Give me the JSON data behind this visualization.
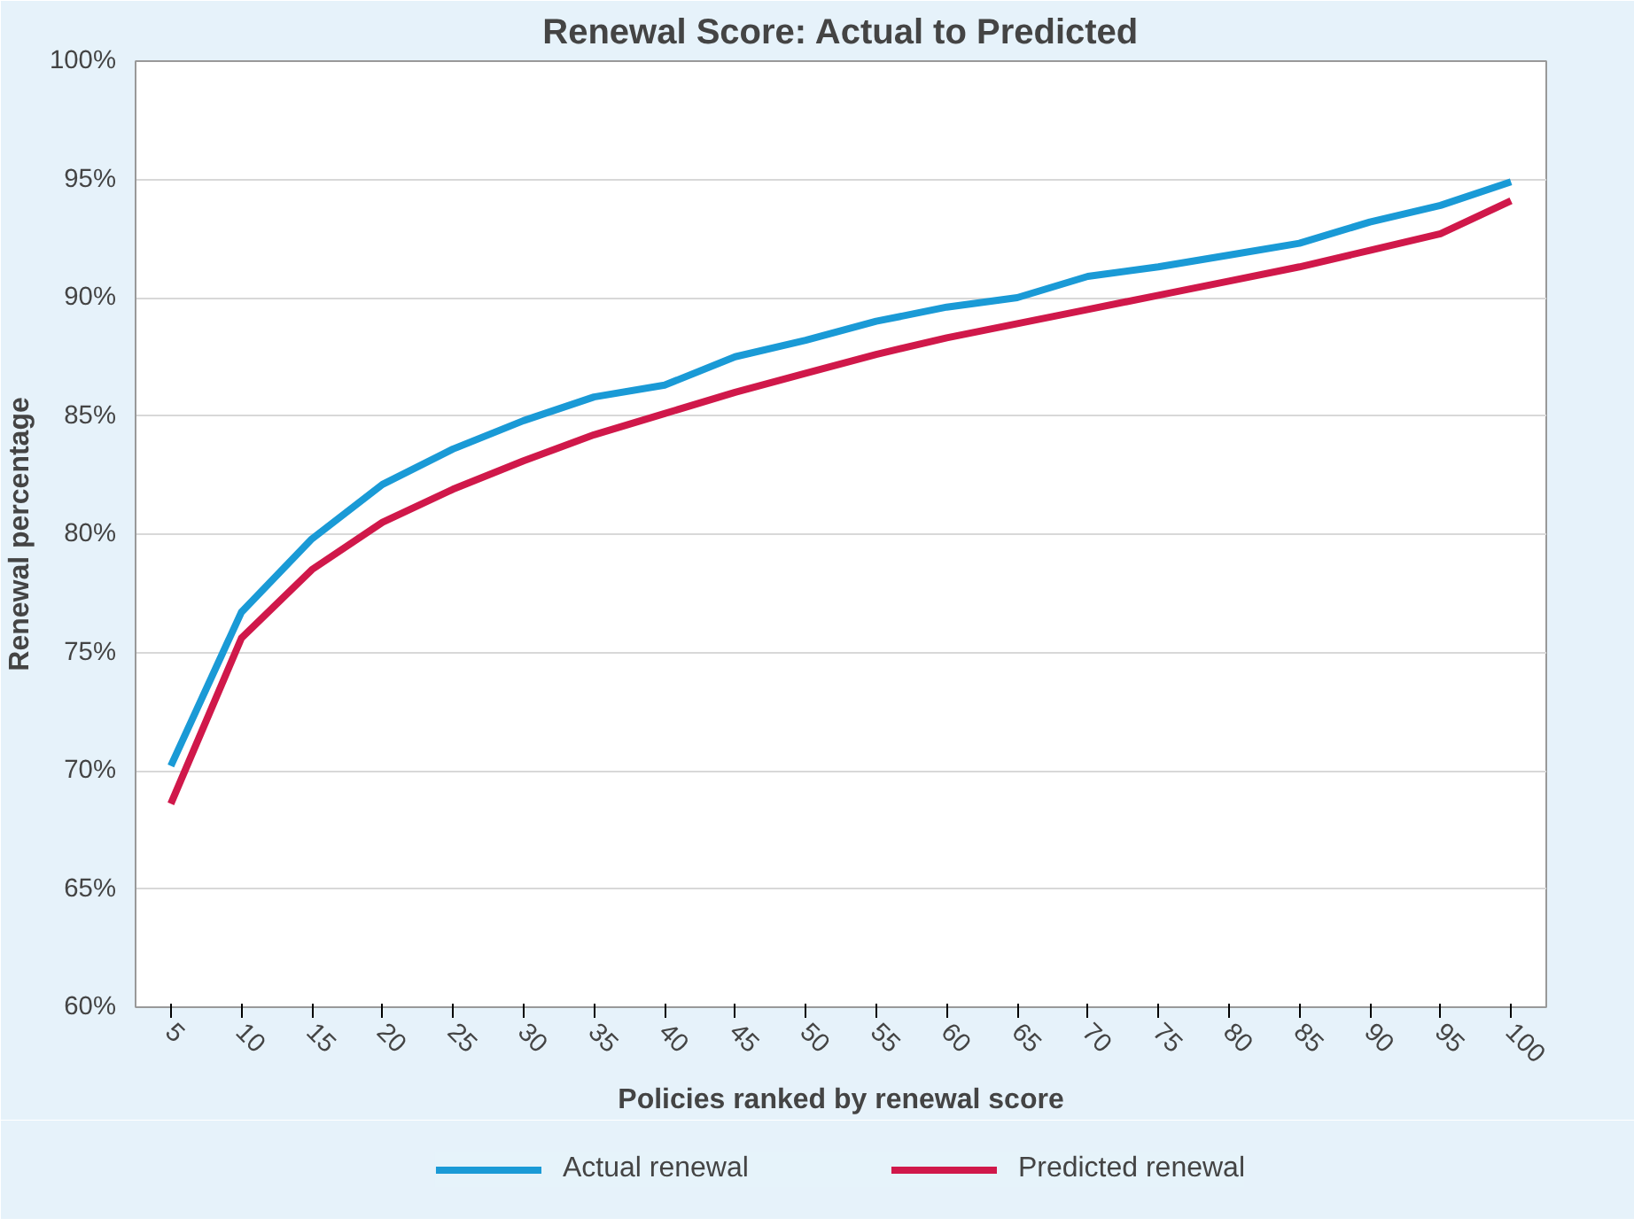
{
  "chart_data": {
    "type": "line",
    "title": "Renewal Score: Actual to Predicted",
    "xlabel": "Policies ranked by renewal score",
    "ylabel": "Renewal percentage",
    "categories": [
      "5",
      "10",
      "15",
      "20",
      "25",
      "30",
      "35",
      "40",
      "45",
      "50",
      "55",
      "60",
      "65",
      "70",
      "75",
      "80",
      "85",
      "90",
      "95",
      "100"
    ],
    "series": [
      {
        "name": "Actual renewal",
        "color": "#1a9ad6",
        "values": [
          70.2,
          76.7,
          79.8,
          82.1,
          83.6,
          84.8,
          85.8,
          86.3,
          87.5,
          88.2,
          89.0,
          89.6,
          90.0,
          90.9,
          91.3,
          91.8,
          92.3,
          93.2,
          93.9,
          94.9
        ]
      },
      {
        "name": "Predicted renewal",
        "color": "#d0184a",
        "values": [
          68.6,
          75.6,
          78.5,
          80.5,
          81.9,
          83.1,
          84.2,
          85.1,
          86.0,
          86.8,
          87.6,
          88.3,
          88.9,
          89.5,
          90.1,
          90.7,
          91.3,
          92.0,
          92.7,
          94.1
        ]
      }
    ],
    "ylim": [
      60,
      100
    ],
    "yticks": [
      {
        "value": 60,
        "label": "60%"
      },
      {
        "value": 65,
        "label": "65%"
      },
      {
        "value": 70,
        "label": "70%"
      },
      {
        "value": 75,
        "label": "75%"
      },
      {
        "value": 80,
        "label": "80%"
      },
      {
        "value": 85,
        "label": "85%"
      },
      {
        "value": 90,
        "label": "90%"
      },
      {
        "value": 95,
        "label": "95%"
      },
      {
        "value": 100,
        "label": "100%"
      }
    ],
    "grid": "y",
    "legend": "bottom",
    "marker": "none",
    "line_style": "solid"
  }
}
